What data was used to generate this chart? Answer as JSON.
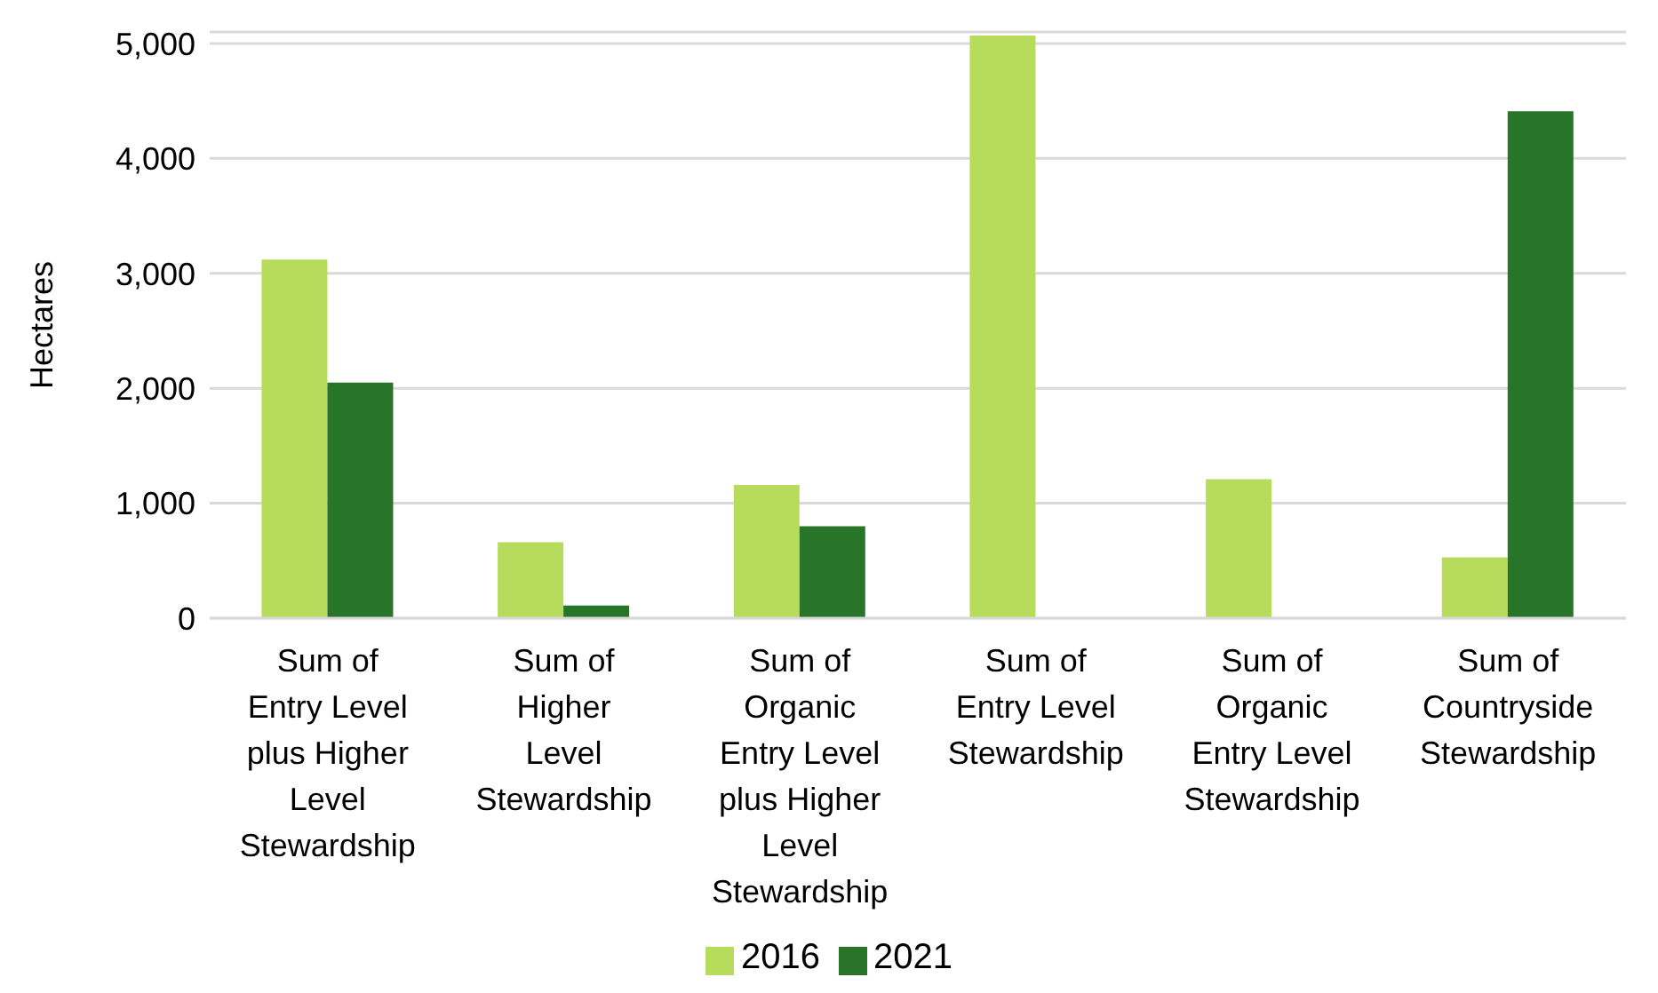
{
  "chart_data": {
    "type": "bar",
    "ylabel": "Hectares",
    "categories": [
      "Sum of Entry Level plus Higher Level Stewardship",
      "Sum of Higher Level Stewardship",
      "Sum of Organic Entry Level plus Higher Level Stewardship",
      "Sum of Entry Level Stewardship",
      "Sum of Organic Entry Level Stewardship",
      "Sum of Countryside Stewardship"
    ],
    "series": [
      {
        "name": "2016",
        "color": "#b7dc5b",
        "values": [
          3120,
          660,
          1160,
          5070,
          1210,
          530
        ]
      },
      {
        "name": "2021",
        "color": "#287428",
        "values": [
          2050,
          110,
          800,
          null,
          null,
          4410
        ]
      }
    ],
    "ylim": [
      0,
      5100
    ],
    "yticks": [
      {
        "value": 0,
        "label": "0"
      },
      {
        "value": 1000,
        "label": "1,000"
      },
      {
        "value": 2000,
        "label": "2,000"
      },
      {
        "value": 3000,
        "label": "3,000"
      },
      {
        "value": 4000,
        "label": "4,000"
      },
      {
        "value": 5000,
        "label": "5,000"
      }
    ],
    "grid": "y",
    "legend": "bottom"
  }
}
